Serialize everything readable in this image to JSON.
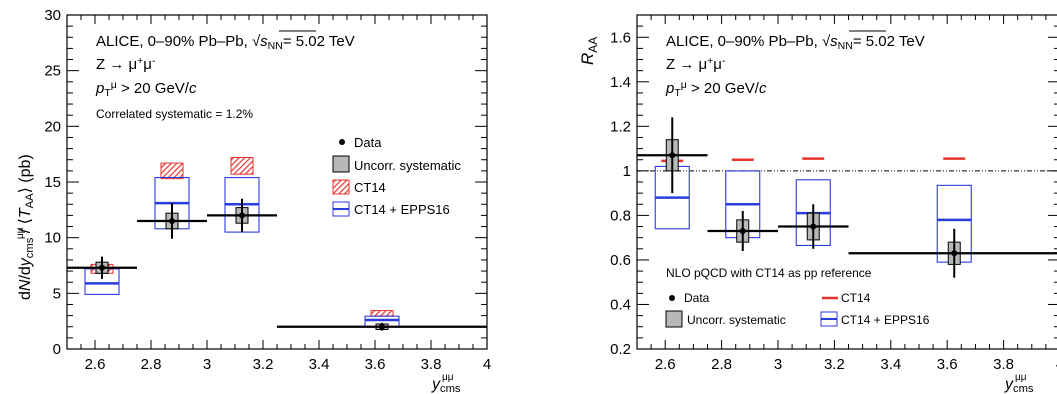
{
  "chart_data": [
    {
      "type": "scatter",
      "panel": "left",
      "ylabel": "dN/dy_cms^μμ / ⟨T_AA⟩ (pb)",
      "xlabel": "y_cms^μμ",
      "xlim": [
        2.5,
        4.0
      ],
      "ylim": [
        0,
        30
      ],
      "xticks": [
        2.6,
        2.8,
        3,
        3.2,
        3.4,
        3.6,
        3.8,
        4
      ],
      "xtick_labels": [
        "2.6",
        "2.8",
        "3",
        "3.2",
        "3.4",
        "3.6",
        "3.8",
        "4"
      ],
      "yticks": [
        0,
        5,
        10,
        15,
        20,
        25,
        30
      ],
      "ytick_labels": [
        "0",
        "5",
        "10",
        "15",
        "20",
        "25",
        "30"
      ],
      "annotations": {
        "line1": "ALICE, 0–90% Pb–Pb, √s_NN = 5.02 TeV",
        "line2": "Z → μ⁺μ⁻",
        "line3": "p_T^μ > 20 GeV/c",
        "corr": "Correlated systematic = 1.2%"
      },
      "legend": [
        "Data",
        "Uncorr. systematic",
        "CT14",
        "CT14 + EPPS16"
      ],
      "data": [
        {
          "x": 2.625,
          "xlo": 2.5,
          "xhi": 2.75,
          "y": 7.3,
          "stat": 1.0,
          "syst": 0.5
        },
        {
          "x": 2.875,
          "xlo": 2.75,
          "xhi": 3.0,
          "y": 11.5,
          "stat": 1.6,
          "syst": 0.7
        },
        {
          "x": 3.125,
          "xlo": 3.0,
          "xhi": 3.25,
          "y": 12.0,
          "stat": 1.5,
          "syst": 0.7
        },
        {
          "x": 3.625,
          "xlo": 3.25,
          "xhi": 4.0,
          "y": 2.0,
          "stat": 0.35,
          "syst": 0.25
        }
      ],
      "ct14": [
        {
          "x": 2.625,
          "lo": 6.8,
          "hi": 7.6
        },
        {
          "x": 2.875,
          "lo": 15.3,
          "hi": 16.7
        },
        {
          "x": 3.125,
          "lo": 15.7,
          "hi": 17.2
        },
        {
          "x": 3.625,
          "lo": 2.95,
          "hi": 3.45
        }
      ],
      "epps16": [
        {
          "x": 2.625,
          "lo": 4.9,
          "hi": 7.2,
          "c": 5.9
        },
        {
          "x": 2.875,
          "lo": 10.8,
          "hi": 15.4,
          "c": 13.1
        },
        {
          "x": 3.125,
          "lo": 10.5,
          "hi": 15.4,
          "c": 13.0
        },
        {
          "x": 3.625,
          "lo": 2.0,
          "hi": 2.95,
          "c": 2.6
        }
      ]
    },
    {
      "type": "scatter",
      "panel": "right",
      "ylabel": "R_AA",
      "xlabel": "y_cms^μμ",
      "xlim": [
        2.5,
        4.0
      ],
      "ylim": [
        0.2,
        1.7
      ],
      "xticks": [
        2.6,
        2.8,
        3,
        3.2,
        3.4,
        3.6,
        3.8,
        4
      ],
      "xtick_labels": [
        "2.6",
        "2.8",
        "3",
        "3.2",
        "3.4",
        "3.6",
        "3.8",
        "4"
      ],
      "yticks": [
        0.2,
        0.4,
        0.6,
        0.8,
        1.0,
        1.2,
        1.4,
        1.6
      ],
      "ytick_labels": [
        "0.2",
        "0.4",
        "0.6",
        "0.8",
        "1",
        "1.2",
        "1.4",
        "1.6"
      ],
      "reference_line": 1.0,
      "annotations": {
        "line1": "ALICE, 0–90% Pb–Pb, √s_NN = 5.02 TeV",
        "line2": "Z → μ⁺μ⁻",
        "line3": "p_T^μ > 20 GeV/c",
        "nlo": "NLO pQCD with CT14 as pp reference"
      },
      "legend": [
        "Data",
        "CT14",
        "Uncorr. systematic",
        "CT14 + EPPS16"
      ],
      "data": [
        {
          "x": 2.625,
          "xlo": 2.5,
          "xhi": 2.75,
          "y": 1.07,
          "stat": 0.17,
          "syst": 0.07
        },
        {
          "x": 2.875,
          "xlo": 2.75,
          "xhi": 3.0,
          "y": 0.73,
          "stat": 0.09,
          "syst": 0.05
        },
        {
          "x": 3.125,
          "xlo": 3.0,
          "xhi": 3.25,
          "y": 0.75,
          "stat": 0.1,
          "syst": 0.06
        },
        {
          "x": 3.625,
          "xlo": 3.25,
          "xhi": 4.0,
          "y": 0.63,
          "stat": 0.11,
          "syst": 0.05
        }
      ],
      "ct14": [
        {
          "x": 2.625,
          "y": 1.045
        },
        {
          "x": 2.875,
          "y": 1.05
        },
        {
          "x": 3.125,
          "y": 1.055
        },
        {
          "x": 3.625,
          "y": 1.055
        }
      ],
      "epps16": [
        {
          "x": 2.625,
          "lo": 0.74,
          "hi": 1.02,
          "c": 0.88
        },
        {
          "x": 2.875,
          "lo": 0.7,
          "hi": 1.0,
          "c": 0.85
        },
        {
          "x": 3.125,
          "lo": 0.665,
          "hi": 0.96,
          "c": 0.81
        },
        {
          "x": 3.625,
          "lo": 0.59,
          "hi": 0.935,
          "c": 0.78
        }
      ]
    }
  ],
  "colors": {
    "ct14_red": "#e8352e",
    "epps16_blue": "#2b3be0",
    "syst_gray": "#b8b8b8",
    "hatch_red": "#e8352e"
  }
}
